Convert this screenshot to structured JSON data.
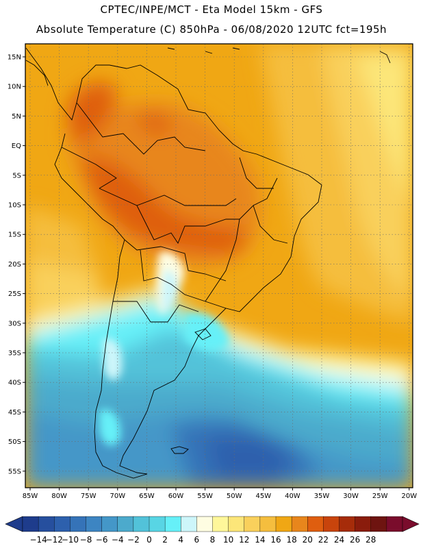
{
  "header": {
    "line1": "CPTEC/INPE/MCT -  Eta Model 15km - GFS",
    "line2": "Absolute Temperature (C) 850hPa - 06/08/2020 12UTC fct=195h"
  },
  "map": {
    "lat_labels": [
      "15N",
      "10N",
      "5N",
      "EQ",
      "5S",
      "10S",
      "15S",
      "20S",
      "25S",
      "30S",
      "35S",
      "40S",
      "45S",
      "50S",
      "55S"
    ],
    "lon_labels": [
      "85W",
      "80W",
      "75W",
      "70W",
      "65W",
      "60W",
      "55W",
      "50W",
      "45W",
      "40W",
      "35W",
      "30W",
      "25W",
      "20W"
    ],
    "grid_lines": "dotted"
  },
  "colorbar": {
    "labels": [
      "-14",
      "-12",
      "-10",
      "-8",
      "-6",
      "-4",
      "-2",
      "0",
      "2",
      "4",
      "6",
      "8",
      "10",
      "12",
      "14",
      "16",
      "18",
      "20",
      "22",
      "24",
      "26",
      "28"
    ],
    "colors": [
      "#1e3c8c",
      "#264f9e",
      "#2d60ad",
      "#3573b8",
      "#3d85c2",
      "#4497c8",
      "#4caacc",
      "#52c2d9",
      "#58d5e4",
      "#66f0f8",
      "#cdf6fa",
      "#fefde2",
      "#fef79a",
      "#fce679",
      "#f9d05c",
      "#f5be3e",
      "#f0a714",
      "#e8861c",
      "#df5e0f",
      "#c8440c",
      "#a62c0a",
      "#8a1c0c",
      "#6e1410",
      "#7a0c2c"
    ],
    "under_color": "#1e3c8c",
    "over_color": "#7a0c2c"
  }
}
